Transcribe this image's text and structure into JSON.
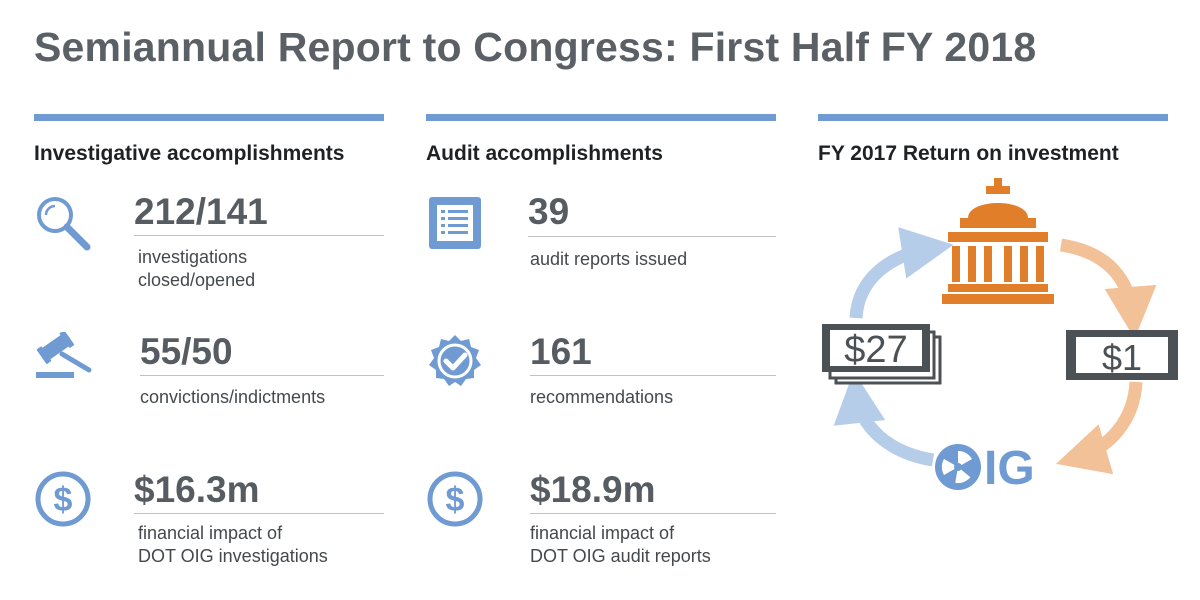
{
  "title": "Semiannual Report to Congress: First Half FY 2018",
  "colors": {
    "accent_blue": "#6f9bd2",
    "orange": "#e07e29",
    "light_orange": "#f2c197",
    "light_blue": "#b5cde9",
    "dark_gray": "#5a6065"
  },
  "columns": [
    {
      "heading": "Investigative accomplishments",
      "stats": [
        {
          "icon": "magnifier-icon",
          "value": "212/141",
          "label": "investigations\nclosed/opened"
        },
        {
          "icon": "gavel-icon",
          "value": "55/50",
          "label": "convictions/indictments"
        },
        {
          "icon": "dollar-circle-icon",
          "value": "$16.3m",
          "label": "financial impact of\nDOT OIG investigations"
        }
      ]
    },
    {
      "heading": "Audit accomplishments",
      "stats": [
        {
          "icon": "report-list-icon",
          "value": "39",
          "label": "audit reports issued"
        },
        {
          "icon": "check-badge-icon",
          "value": "161",
          "label": "recommendations"
        },
        {
          "icon": "dollar-circle-icon",
          "value": "$18.9m",
          "label": "financial impact of\nDOT OIG audit reports"
        }
      ]
    },
    {
      "heading": "FY 2017 Return on investment"
    }
  ],
  "roi": {
    "left_bill": "$27",
    "right_bill": "$1",
    "logo_text": "IG",
    "icons": [
      "capitol-icon",
      "money-stack-icon",
      "dollar-bill-icon",
      "oig-logo-icon",
      "cycle-arrow-icon"
    ]
  }
}
